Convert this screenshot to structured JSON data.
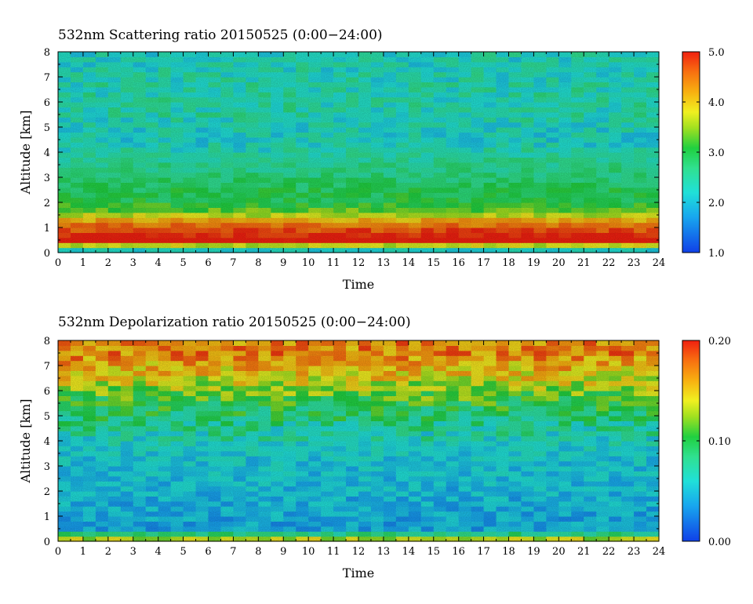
{
  "chart_data": [
    {
      "type": "heatmap",
      "title": "532nm Scattering ratio  20150525 (0:00−24:00)",
      "xlabel": "Time",
      "ylabel": "Altitude [km]",
      "xlim": [
        0,
        24
      ],
      "ylim": [
        0,
        8
      ],
      "x_ticks": [
        "0",
        "1",
        "2",
        "3",
        "4",
        "5",
        "6",
        "7",
        "8",
        "9",
        "10",
        "11",
        "12",
        "13",
        "14",
        "15",
        "16",
        "17",
        "18",
        "19",
        "20",
        "21",
        "22",
        "23",
        "24"
      ],
      "y_ticks": [
        "0",
        "1",
        "2",
        "3",
        "4",
        "5",
        "6",
        "7",
        "8"
      ],
      "colorbar": {
        "range": [
          1.0,
          5.0
        ],
        "tick_labels": [
          "1.0",
          "2.0",
          "3.0",
          "4.0",
          "5.0"
        ],
        "tick_values": [
          1.0,
          2.0,
          3.0,
          4.0,
          5.0
        ]
      },
      "altitude_profile_km": [
        0.1,
        0.5,
        1.2,
        1.6,
        2.0,
        2.6,
        3.2,
        3.6,
        4.5,
        5.5,
        6.5,
        7.5
      ],
      "mean_value_by_altitude": [
        2.2,
        5.2,
        4.4,
        3.4,
        3.0,
        2.9,
        2.7,
        2.6,
        2.2,
        2.4,
        2.4,
        2.3
      ]
    },
    {
      "type": "heatmap",
      "title": "532nm Depolarization ratio  20150525 (0:00−24:00)",
      "xlabel": "Time",
      "ylabel": "Altitude [km]",
      "xlim": [
        0,
        24
      ],
      "ylim": [
        0,
        8
      ],
      "x_ticks": [
        "0",
        "1",
        "2",
        "3",
        "4",
        "5",
        "6",
        "7",
        "8",
        "9",
        "10",
        "11",
        "12",
        "13",
        "14",
        "15",
        "16",
        "17",
        "18",
        "19",
        "20",
        "21",
        "22",
        "23",
        "24"
      ],
      "y_ticks": [
        "0",
        "1",
        "2",
        "3",
        "4",
        "5",
        "6",
        "7",
        "8"
      ],
      "colorbar": {
        "range": [
          0.0,
          0.2
        ],
        "tick_labels": [
          "0.00",
          "0.10",
          "0.20"
        ],
        "tick_values": [
          0.0,
          0.1,
          0.2
        ]
      },
      "altitude_profile_km": [
        0.1,
        0.5,
        1.5,
        2.5,
        3.5,
        4.5,
        5.5,
        6.5,
        7.5
      ],
      "mean_value_by_altitude": [
        0.13,
        0.04,
        0.045,
        0.05,
        0.055,
        0.075,
        0.1,
        0.14,
        0.17
      ]
    }
  ]
}
